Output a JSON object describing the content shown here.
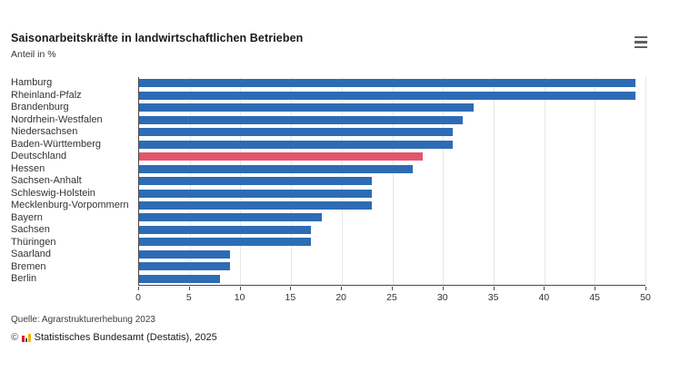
{
  "header": {
    "title": "Saisonarbeitskräfte in landwirtschaftlichen Betrieben",
    "subtitle": "Anteil in %",
    "menu_icon": "hamburger-icon"
  },
  "chart_data": {
    "type": "bar",
    "orientation": "horizontal",
    "title": "Saisonarbeitskräfte in landwirtschaftlichen Betrieben",
    "value_label": "Anteil in %",
    "categories": [
      "Hamburg",
      "Rheinland-Pfalz",
      "Brandenburg",
      "Nordrhein-Westfalen",
      "Niedersachsen",
      "Baden-Württemberg",
      "Deutschland",
      "Hessen",
      "Sachsen-Anhalt",
      "Schleswig-Holstein",
      "Mecklenburg-Vorpommern",
      "Bayern",
      "Sachsen",
      "Thüringen",
      "Saarland",
      "Bremen",
      "Berlin"
    ],
    "values": [
      49,
      49,
      33,
      32,
      31,
      31,
      28,
      27,
      23,
      23,
      23,
      18,
      17,
      17,
      9,
      9,
      8
    ],
    "highlight_category": "Deutschland",
    "xlim": [
      0,
      50
    ],
    "xticks": [
      0,
      5,
      10,
      15,
      20,
      25,
      30,
      35,
      40,
      45,
      50
    ],
    "grid": true,
    "bar_color": "#2d6cb5",
    "highlight_color": "#e0566a",
    "gridline_color": "#e7e7e7",
    "axis_color": "#4a4a4a"
  },
  "footer": {
    "source": "Quelle: Agrarstrukturerhebung 2023",
    "copyright_symbol": "©",
    "copyright_text": "Statistisches Bundesamt (Destatis), 2025"
  }
}
